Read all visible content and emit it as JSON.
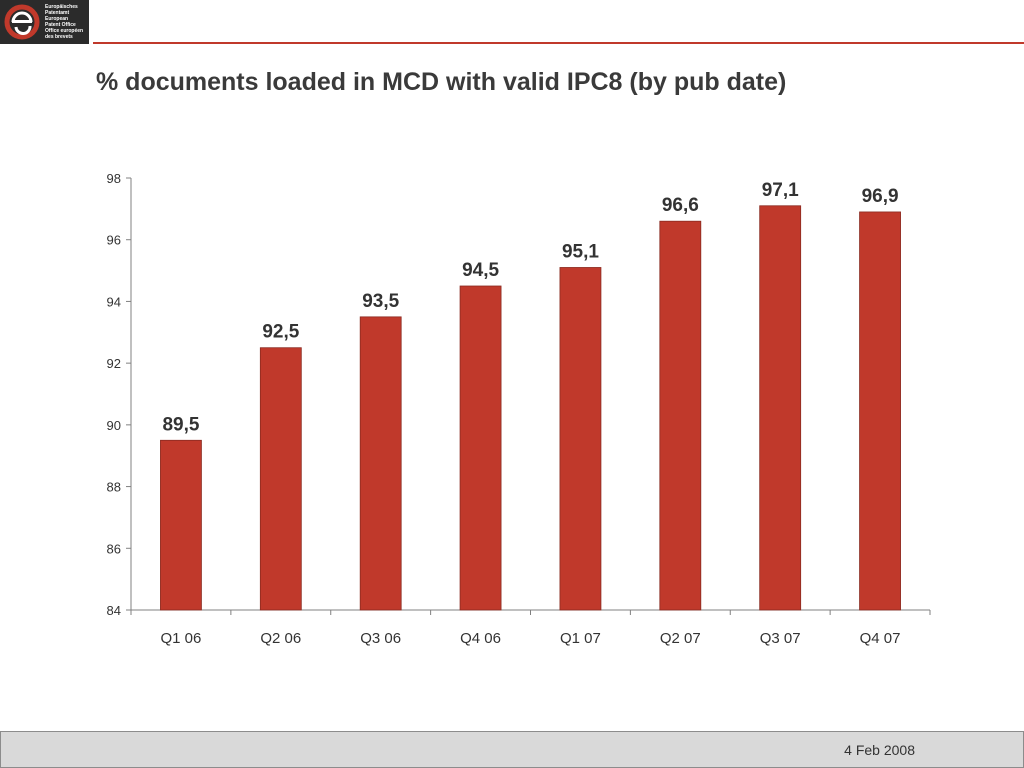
{
  "logo": {
    "lines": [
      "Europäisches",
      "Patentamt",
      "European",
      "Patent Office",
      "Office européen",
      "des brevets"
    ]
  },
  "slide": {
    "title": "% documents loaded in MCD with valid IPC8 (by pub date)",
    "footer_date": "4 Feb 2008"
  },
  "colors": {
    "bar": "#c0392b",
    "accent_rule": "#c0392b",
    "footer_bg": "#d9d9d9"
  },
  "chart_data": {
    "type": "bar",
    "title": "",
    "xlabel": "",
    "ylabel": "",
    "categories": [
      "Q1 06",
      "Q2 06",
      "Q3 06",
      "Q4 06",
      "Q1 07",
      "Q2 07",
      "Q3 07",
      "Q4 07"
    ],
    "values": [
      89.5,
      92.5,
      93.5,
      94.5,
      95.1,
      96.6,
      97.1,
      96.9
    ],
    "data_labels": [
      "89,5",
      "92,5",
      "93,5",
      "94,5",
      "95,1",
      "96,6",
      "97,1",
      "96,9"
    ],
    "ylim": [
      84,
      98
    ],
    "yticks": [
      84,
      86,
      88,
      90,
      92,
      94,
      96,
      98
    ],
    "grid": false,
    "legend": "none"
  }
}
